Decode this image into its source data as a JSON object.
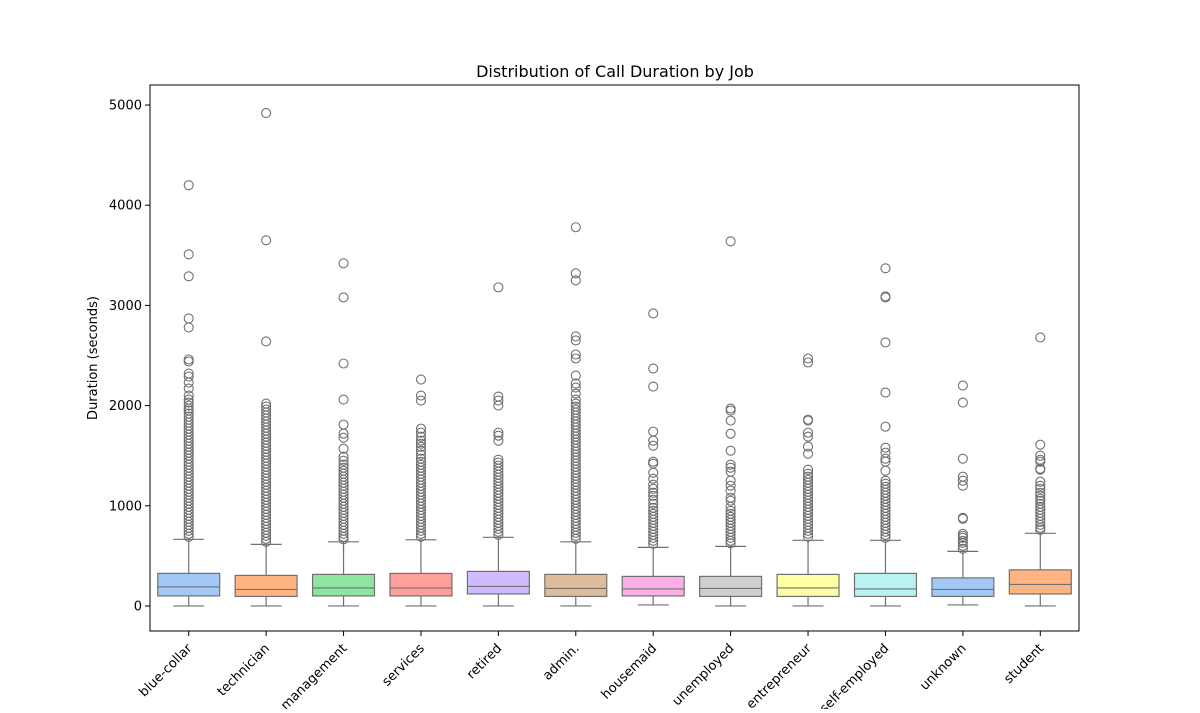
{
  "chart_data": {
    "type": "box",
    "title": "Distribution of Call Duration by Job",
    "xlabel": "",
    "ylabel": "Duration (seconds)",
    "ylim": [
      -250,
      5200
    ],
    "yticks": [
      0,
      1000,
      2000,
      3000,
      4000,
      5000
    ],
    "grid": false,
    "categories": [
      "blue-collar",
      "technician",
      "management",
      "services",
      "retired",
      "admin.",
      "housemaid",
      "unemployed",
      "entrepreneur",
      "self-employed",
      "unknown",
      "student"
    ],
    "colors": [
      "#a1c9f4",
      "#ffb482",
      "#8de5a1",
      "#ff9f9b",
      "#d0bbff",
      "#debb9b",
      "#fab0e4",
      "#cfcfcf",
      "#fffea3",
      "#b9f2f0",
      "#a1c9f4",
      "#ffb482"
    ],
    "boxes": [
      {
        "category": "blue-collar",
        "whislo": 0,
        "q1": 100,
        "med": 190,
        "q3": 325,
        "whishi": 665,
        "outliers": [
          4200,
          3510,
          3290,
          2870,
          2780,
          2460,
          2440,
          2320,
          2290,
          2230,
          2170,
          2100,
          2060,
          2030,
          2000,
          1970,
          1950,
          1920,
          1890,
          1860,
          1830,
          1800,
          1770,
          1740,
          1710,
          1680,
          1650,
          1620,
          1590,
          1560,
          1530,
          1500,
          1470,
          1440,
          1410,
          1380,
          1350,
          1320,
          1290,
          1260,
          1230,
          1200,
          1170,
          1140,
          1110,
          1080,
          1050,
          1020,
          990,
          960,
          930,
          900,
          870,
          840,
          810,
          780,
          750,
          720,
          690
        ]
      },
      {
        "category": "technician",
        "whislo": 0,
        "q1": 95,
        "med": 165,
        "q3": 305,
        "whishi": 615,
        "outliers": [
          4920,
          3650,
          2640,
          2020,
          1990,
          1960,
          1930,
          1900,
          1870,
          1840,
          1810,
          1780,
          1750,
          1720,
          1690,
          1660,
          1630,
          1600,
          1570,
          1540,
          1510,
          1480,
          1450,
          1420,
          1390,
          1360,
          1330,
          1300,
          1270,
          1240,
          1210,
          1180,
          1150,
          1120,
          1090,
          1060,
          1030,
          1000,
          970,
          940,
          910,
          880,
          850,
          820,
          790,
          760,
          730,
          700,
          670,
          640
        ]
      },
      {
        "category": "management",
        "whislo": 0,
        "q1": 100,
        "med": 180,
        "q3": 315,
        "whishi": 640,
        "outliers": [
          3420,
          3080,
          2420,
          2060,
          1810,
          1720,
          1680,
          1570,
          1490,
          1450,
          1410,
          1380,
          1350,
          1320,
          1290,
          1260,
          1230,
          1200,
          1170,
          1140,
          1110,
          1080,
          1050,
          1020,
          990,
          960,
          930,
          900,
          870,
          840,
          810,
          780,
          750,
          720,
          690,
          665
        ]
      },
      {
        "category": "services",
        "whislo": 0,
        "q1": 100,
        "med": 180,
        "q3": 325,
        "whishi": 660,
        "outliers": [
          2260,
          2100,
          2050,
          1770,
          1730,
          1690,
          1650,
          1620,
          1590,
          1550,
          1510,
          1470,
          1440,
          1410,
          1380,
          1350,
          1320,
          1290,
          1260,
          1230,
          1200,
          1170,
          1140,
          1110,
          1080,
          1050,
          1020,
          990,
          960,
          930,
          900,
          870,
          840,
          810,
          780,
          750,
          720,
          690
        ]
      },
      {
        "category": "retired",
        "whislo": 0,
        "q1": 120,
        "med": 195,
        "q3": 345,
        "whishi": 685,
        "outliers": [
          3180,
          2090,
          2050,
          2000,
          1730,
          1700,
          1650,
          1460,
          1430,
          1400,
          1370,
          1340,
          1310,
          1280,
          1250,
          1220,
          1190,
          1160,
          1130,
          1100,
          1070,
          1040,
          1010,
          980,
          950,
          920,
          890,
          860,
          830,
          800,
          770,
          740,
          710
        ]
      },
      {
        "category": "admin.",
        "whislo": 0,
        "q1": 95,
        "med": 175,
        "q3": 315,
        "whishi": 640,
        "outliers": [
          3780,
          3320,
          3250,
          2690,
          2650,
          2510,
          2470,
          2300,
          2220,
          2180,
          2120,
          2060,
          2020,
          1990,
          1960,
          1930,
          1900,
          1870,
          1840,
          1810,
          1780,
          1750,
          1720,
          1690,
          1660,
          1630,
          1600,
          1570,
          1540,
          1510,
          1480,
          1450,
          1420,
          1390,
          1360,
          1330,
          1300,
          1270,
          1240,
          1210,
          1180,
          1150,
          1120,
          1090,
          1060,
          1030,
          1000,
          970,
          940,
          910,
          880,
          850,
          820,
          790,
          760,
          730,
          700,
          670
        ]
      },
      {
        "category": "housemaid",
        "whislo": 10,
        "q1": 100,
        "med": 170,
        "q3": 295,
        "whishi": 585,
        "outliers": [
          2920,
          2370,
          2190,
          1740,
          1650,
          1600,
          1440,
          1420,
          1330,
          1270,
          1210,
          1170,
          1130,
          1100,
          1060,
          1020,
          980,
          950,
          920,
          890,
          860,
          830,
          800,
          770,
          740,
          710,
          680,
          650,
          620
        ]
      },
      {
        "category": "unemployed",
        "whislo": 0,
        "q1": 95,
        "med": 175,
        "q3": 295,
        "whishi": 595,
        "outliers": [
          3640,
          1970,
          1950,
          1850,
          1720,
          1550,
          1410,
          1380,
          1340,
          1250,
          1200,
          1150,
          1080,
          1050,
          990,
          950,
          920,
          890,
          860,
          830,
          800,
          770,
          740,
          710,
          680,
          650,
          625
        ]
      },
      {
        "category": "entrepreneur",
        "whislo": 0,
        "q1": 95,
        "med": 180,
        "q3": 315,
        "whishi": 655,
        "outliers": [
          2470,
          2430,
          1860,
          1850,
          1730,
          1690,
          1590,
          1520,
          1360,
          1320,
          1290,
          1260,
          1230,
          1200,
          1170,
          1140,
          1110,
          1080,
          1050,
          1020,
          990,
          960,
          930,
          900,
          870,
          840,
          810,
          780,
          750,
          720,
          690
        ]
      },
      {
        "category": "self-employed",
        "whislo": 0,
        "q1": 95,
        "med": 170,
        "q3": 325,
        "whishi": 655,
        "outliers": [
          3370,
          3090,
          3080,
          2630,
          2130,
          1790,
          1580,
          1530,
          1470,
          1440,
          1350,
          1250,
          1220,
          1190,
          1160,
          1130,
          1100,
          1070,
          1040,
          1010,
          980,
          950,
          920,
          890,
          860,
          830,
          800,
          770,
          740,
          710,
          680
        ]
      },
      {
        "category": "unknown",
        "whislo": 10,
        "q1": 95,
        "med": 165,
        "q3": 280,
        "whishi": 545,
        "outliers": [
          2200,
          2030,
          1470,
          1290,
          1250,
          1200,
          880,
          870,
          720,
          700,
          680,
          650,
          630,
          600,
          570
        ]
      },
      {
        "category": "student",
        "whislo": 0,
        "q1": 120,
        "med": 215,
        "q3": 360,
        "whishi": 725,
        "outliers": [
          2680,
          1610,
          1500,
          1460,
          1440,
          1370,
          1360,
          1240,
          1200,
          1170,
          1130,
          1100,
          1070,
          1050,
          1020,
          990,
          960,
          930,
          900,
          870,
          840,
          810,
          780,
          760
        ]
      }
    ]
  }
}
